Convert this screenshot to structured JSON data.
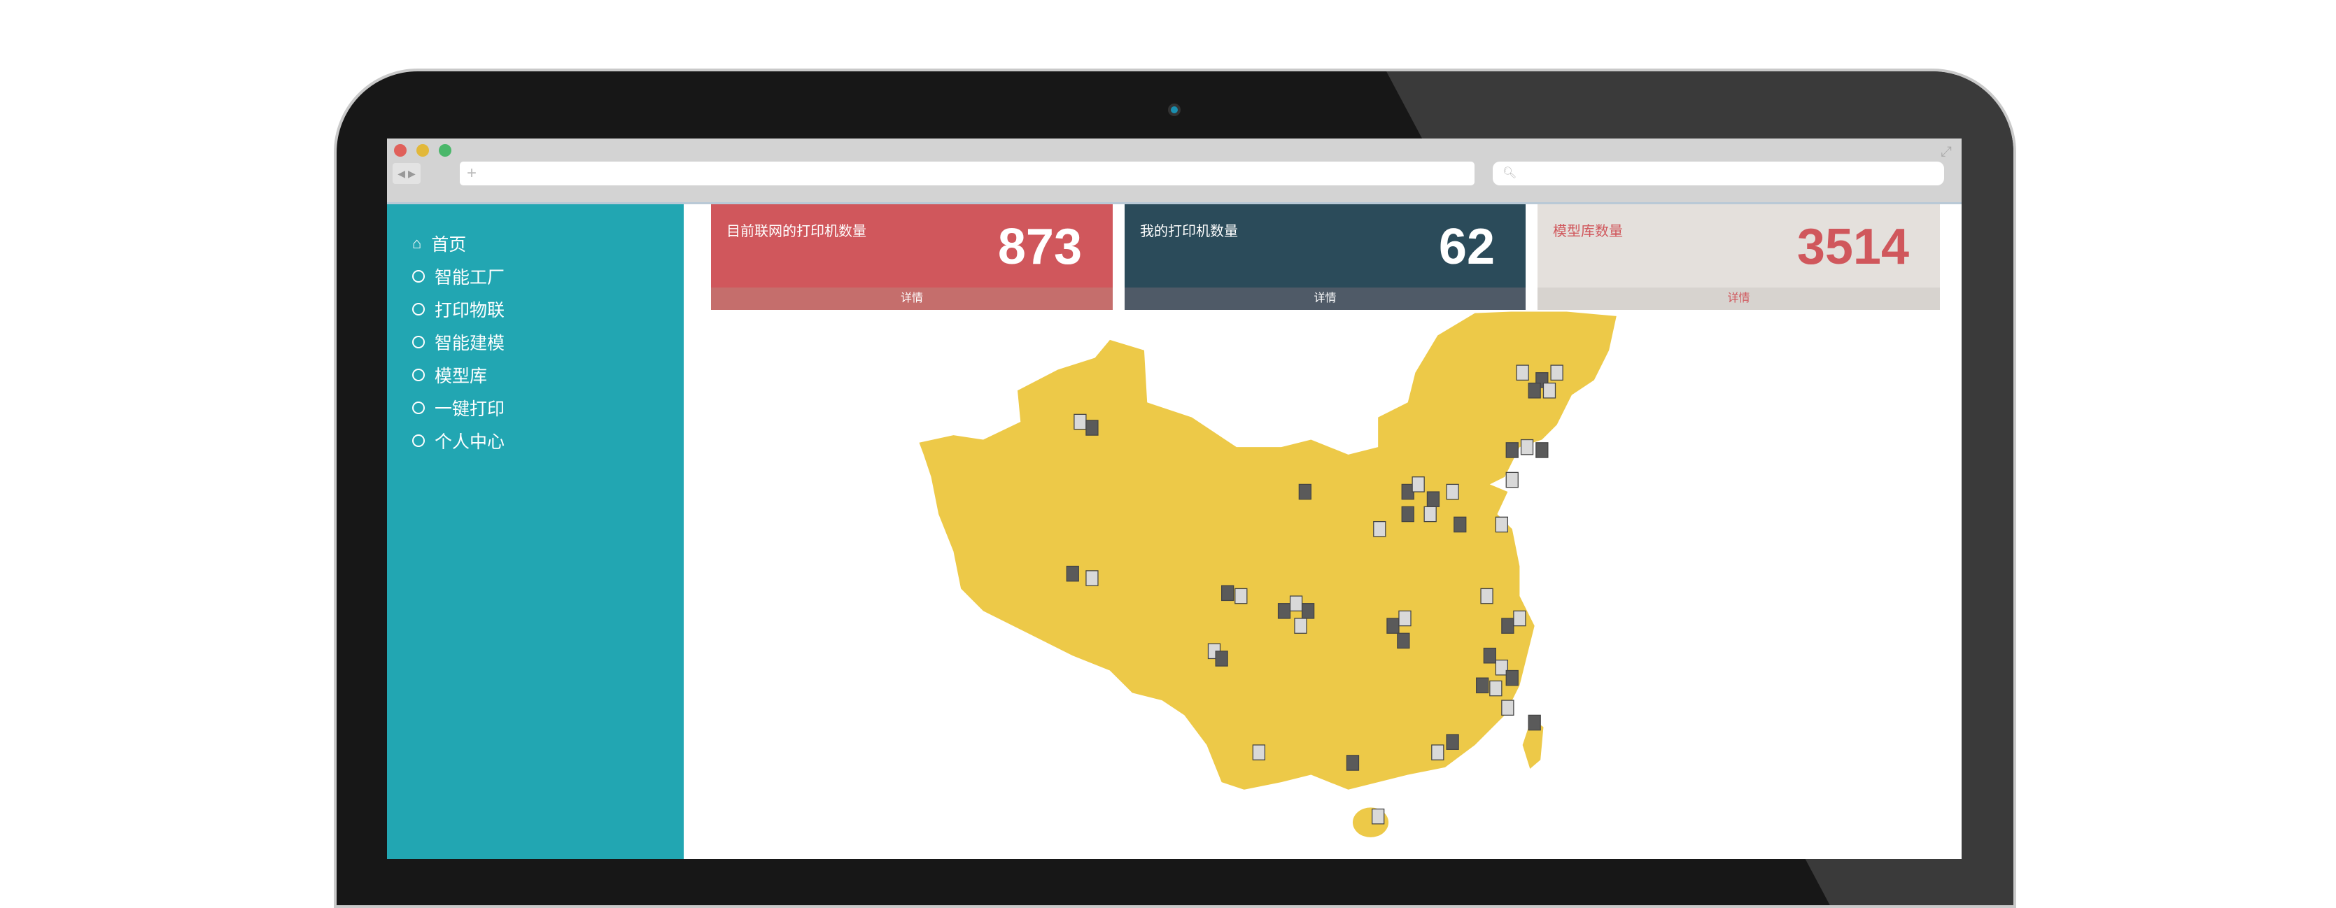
{
  "browser": {
    "url_placeholder": "+",
    "search_icon": "search-icon",
    "traffic_lights": [
      "#e0605a",
      "#e2b83a",
      "#4ab76a"
    ]
  },
  "sidebar": {
    "bg": "#22a6b2",
    "items": [
      {
        "label": "首页",
        "icon": "home-icon"
      },
      {
        "label": "智能工厂",
        "icon": "circle-icon"
      },
      {
        "label": "打印物联",
        "icon": "circle-icon"
      },
      {
        "label": "智能建模",
        "icon": "circle-icon"
      },
      {
        "label": "模型库",
        "icon": "circle-icon"
      },
      {
        "label": "一键打印",
        "icon": "circle-icon"
      },
      {
        "label": "个人中心",
        "icon": "circle-icon"
      }
    ]
  },
  "cards": [
    {
      "title": "目前联网的打印机数量",
      "value": "873",
      "footer": "详情",
      "bg": "#d0575c",
      "footer_bg": "#c56e6c",
      "color": "#ffffff"
    },
    {
      "title": "我的打印机数量",
      "value": "62",
      "footer": "详情",
      "bg": "#2b4b5a",
      "footer_bg": "#4f5a67",
      "color": "#ffffff"
    },
    {
      "title": "模型库数量",
      "value": "3514",
      "footer": "详情",
      "bg": "#e4e0dc",
      "footer_bg": "#d7d3cf",
      "color": "#d0575c"
    }
  ],
  "map": {
    "fill": "#edc948",
    "marker_icon": "printer-icon"
  }
}
